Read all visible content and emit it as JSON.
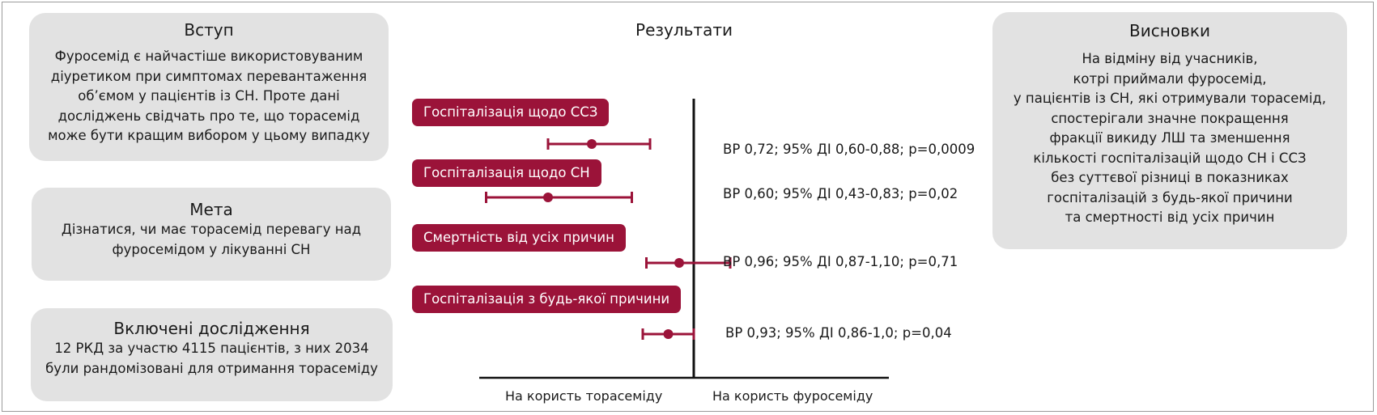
{
  "intro": {
    "title": "Вступ",
    "text": "Фуросемід є найчастіше використовуваним\nдіуретиком при симптомах перевантаження\nоб’ємом у пацієнтів із СН. Проте дані\nдосліджень свідчать про те, що торасемід\nможе бути кращим вибором у цьому випадку"
  },
  "goal": {
    "title": "Мета",
    "text": "Дізнатися, чи має торасемід перевагу над\nфуросемідом у лікуванні СН"
  },
  "studies": {
    "title": "Включені дослідження",
    "text": "12 РКД за участю 4115 пацієнтів, з них 2034\nбули рандомізовані для отримання торасеміду"
  },
  "conclusions": {
    "title": "Висновки",
    "text": "На відміну від учасників,\nкотрі приймали фуросемід,\nу пацієнтів із СН, які отримували торасемід,\nспостерігали значне покращення\nфракції викиду ЛШ та зменшення\nкількості госпіталізацій щодо СН і ССЗ\nбез суттєвої різниці в показниках\nгоспіталізацій з будь-якої причини\nта смертності від усіх причин"
  },
  "results": {
    "title": "Результати",
    "axis_left_label": "На користь торасеміду",
    "axis_right_label": "На користь фуросеміду"
  },
  "chart_data": {
    "type": "forest",
    "measure": "ВР",
    "reference_line": 1.0,
    "rows": [
      {
        "label": "Госпіталізація щодо ССЗ",
        "rr": 0.72,
        "ci": [
          0.6,
          0.88
        ],
        "text": "ВР 0,72; 95% ДІ 0,60-0,88; p=0,0009"
      },
      {
        "label": "Госпіталізація щодо СН",
        "rr": 0.6,
        "ci": [
          0.43,
          0.83
        ],
        "text": "ВР 0,60; 95% ДІ 0,43-0,83; p=0,02"
      },
      {
        "label": "Смертність від усіх причин",
        "rr": 0.96,
        "ci": [
          0.87,
          1.1
        ],
        "text": "ВР 0,96; 95% ДІ 0,87-1,10; p=0,71"
      },
      {
        "label": "Госпіталізація з будь-якої причини",
        "rr": 0.93,
        "ci": [
          0.86,
          1.0
        ],
        "text": "ВР 0,93; 95% ДІ 0,86-1,0; p=0,04"
      }
    ]
  },
  "colors": {
    "accent": "#9b1339",
    "card_bg": "#e2e2e2",
    "axis": "#111111"
  }
}
